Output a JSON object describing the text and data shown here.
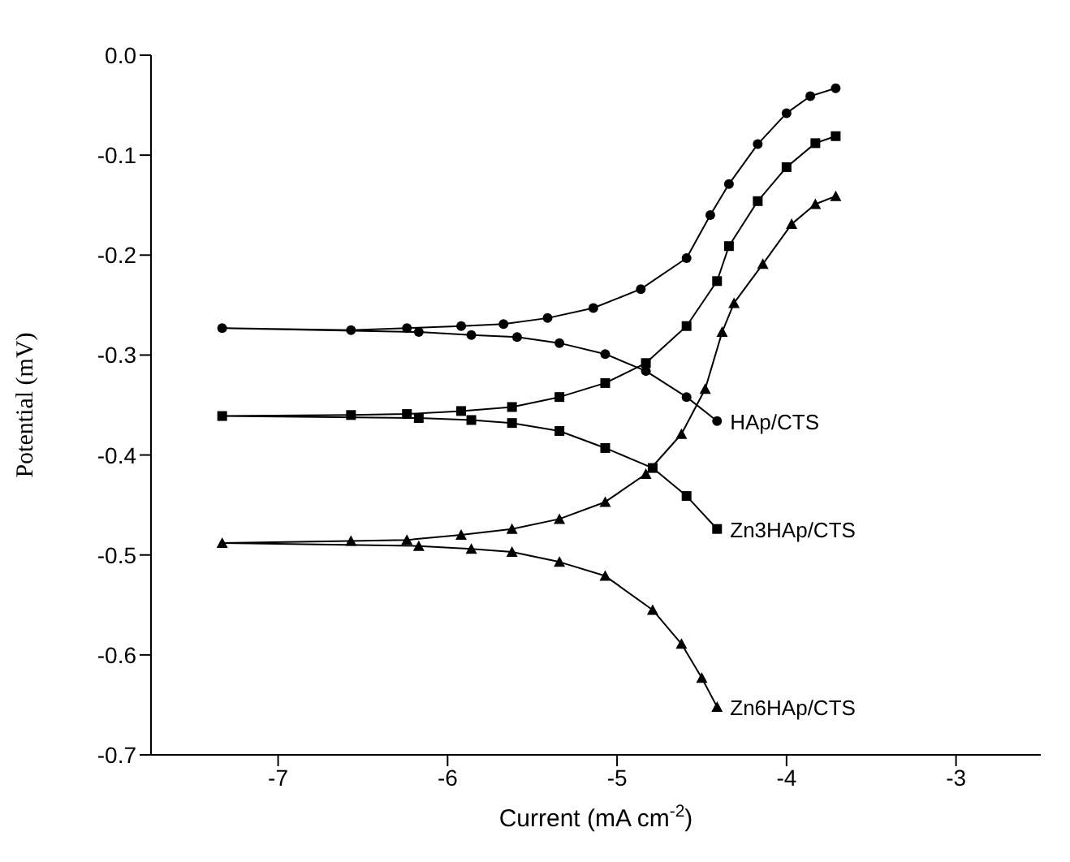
{
  "chart_data": {
    "type": "line",
    "xlabel": "Current (mA cm$^{-2}$)",
    "ylabel": "Potential (mV)",
    "xlim": [
      -7.75,
      -2.5
    ],
    "xticks": [
      -7,
      -6,
      -5,
      -4,
      -3
    ],
    "ylim": [
      -0.7,
      0
    ],
    "yticks": [
      {
        "value": 0,
        "label": "0.0"
      },
      -0.1,
      -0.2,
      -0.3,
      -0.4,
      -0.5,
      -0.6,
      -0.7
    ],
    "line_style": "solid",
    "series": [
      {
        "name": "HAp/CTS",
        "color": "#000000",
        "marker": "circle",
        "x": [
          -3.71,
          -3.86,
          -4.0,
          -4.17,
          -4.34,
          -4.45,
          -4.59,
          -4.86,
          -5.14,
          -5.41,
          -5.67,
          -5.92,
          -6.24,
          -6.57,
          -7.33,
          -6.17,
          -5.86,
          -5.59,
          -5.34,
          -5.07,
          -4.83,
          -4.59,
          -4.41
        ],
        "values": [
          -0.033,
          -0.041,
          -0.058,
          -0.089,
          -0.129,
          -0.16,
          -0.203,
          -0.234,
          -0.253,
          -0.263,
          -0.269,
          -0.271,
          -0.273,
          -0.275,
          -0.273,
          -0.277,
          -0.28,
          -0.282,
          -0.288,
          -0.299,
          -0.316,
          -0.342,
          -0.366
        ]
      },
      {
        "name": "Zn3HAp/CTS",
        "color": "#000000",
        "marker": "square",
        "x": [
          -3.71,
          -3.83,
          -4.0,
          -4.17,
          -4.34,
          -4.41,
          -4.59,
          -4.83,
          -5.07,
          -5.34,
          -5.62,
          -5.92,
          -6.24,
          -6.57,
          -7.33,
          -6.17,
          -5.86,
          -5.62,
          -5.34,
          -5.07,
          -4.79,
          -4.59,
          -4.41
        ],
        "values": [
          -0.081,
          -0.088,
          -0.112,
          -0.146,
          -0.191,
          -0.226,
          -0.271,
          -0.308,
          -0.328,
          -0.342,
          -0.352,
          -0.356,
          -0.359,
          -0.36,
          -0.361,
          -0.363,
          -0.365,
          -0.368,
          -0.376,
          -0.393,
          -0.413,
          -0.441,
          -0.474
        ]
      },
      {
        "name": "Zn6HAp/CTS",
        "color": "#000000",
        "marker": "triangle",
        "x": [
          -3.71,
          -3.83,
          -3.97,
          -4.14,
          -4.31,
          -4.38,
          -4.48,
          -4.62,
          -4.83,
          -5.07,
          -5.34,
          -5.62,
          -5.92,
          -6.24,
          -6.57,
          -7.33,
          -6.17,
          -5.86,
          -5.62,
          -5.34,
          -5.07,
          -4.79,
          -4.62,
          -4.5,
          -4.41
        ],
        "values": [
          -0.141,
          -0.149,
          -0.169,
          -0.209,
          -0.248,
          -0.277,
          -0.334,
          -0.379,
          -0.419,
          -0.447,
          -0.464,
          -0.474,
          -0.48,
          -0.485,
          -0.486,
          -0.488,
          -0.491,
          -0.494,
          -0.497,
          -0.507,
          -0.521,
          -0.555,
          -0.589,
          -0.623,
          -0.652
        ]
      }
    ]
  }
}
